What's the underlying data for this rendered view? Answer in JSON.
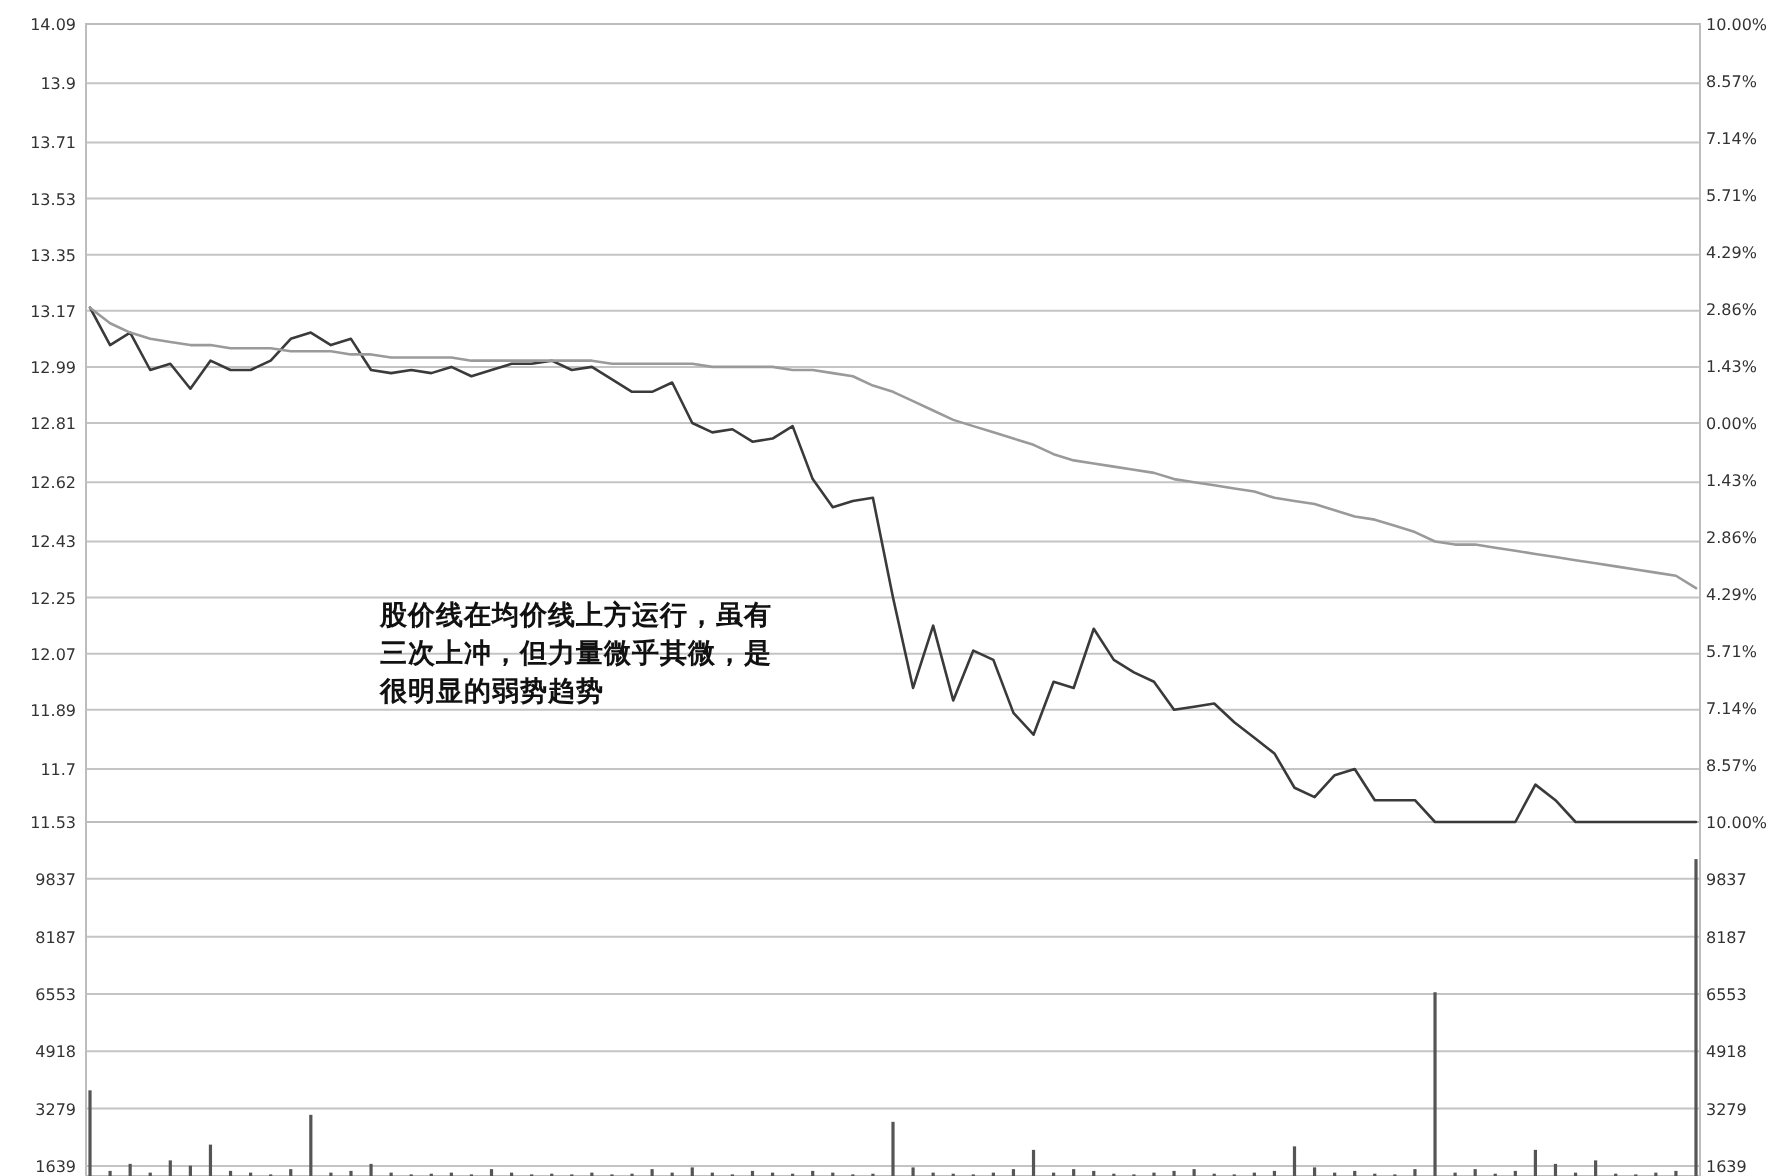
{
  "chart_data": [
    {
      "type": "line",
      "categories": [
        null,
        null,
        null,
        null,
        null,
        null,
        null,
        null,
        null,
        null,
        null,
        null,
        null,
        null,
        null,
        null,
        null,
        null,
        null,
        null,
        null,
        null,
        null,
        null,
        null,
        null,
        null,
        null,
        null,
        null,
        null,
        null,
        null,
        null,
        null,
        null,
        null,
        null,
        null,
        null,
        null,
        null,
        null,
        null,
        null,
        null,
        null,
        null,
        null,
        null,
        null,
        null,
        null,
        null,
        null,
        null,
        null,
        null,
        null,
        null,
        null,
        null,
        null,
        null,
        null,
        null,
        null,
        null,
        null,
        null,
        null,
        null,
        null,
        null,
        null,
        null,
        null,
        null,
        null,
        null,
        null
      ],
      "ylim": [
        11.53,
        14.09
      ],
      "yticks": [
        14.09,
        13.9,
        13.71,
        13.53,
        13.35,
        13.17,
        12.99,
        12.81,
        12.62,
        12.43,
        12.25,
        12.07,
        11.89,
        11.7,
        11.53
      ],
      "y2lim": [
        -10,
        10
      ],
      "y2ticks": [
        {
          "value": 10,
          "label": "10.00%"
        },
        {
          "value": 8.57,
          "label": "8.57%"
        },
        {
          "value": 7.14,
          "label": "7.14%"
        },
        {
          "value": 5.71,
          "label": "5.71%"
        },
        {
          "value": 4.29,
          "label": "4.29%"
        },
        {
          "value": 2.86,
          "label": "2.86%"
        },
        {
          "value": 1.43,
          "label": "1.43%"
        },
        {
          "value": 0,
          "label": "0.00%"
        },
        {
          "value": -1.43,
          "label": "1.43%"
        },
        {
          "value": -2.86,
          "label": "2.86%"
        },
        {
          "value": -4.29,
          "label": "4.29%"
        },
        {
          "value": -5.71,
          "label": "5.71%"
        },
        {
          "value": -7.14,
          "label": "7.14%"
        },
        {
          "value": -8.57,
          "label": "8.57%"
        },
        {
          "value": -10,
          "label": "10.00%"
        }
      ],
      "grid": "y",
      "tick_labels": "y",
      "line_style": "solid",
      "annotations": [
        "股价线在均价线上方运行，虽有三次上冲，但力量微乎其微，是很明显的弱势趋势"
      ],
      "series": [
        {
          "color": "#3a3a3a",
          "values": [
            13.18,
            13.06,
            13.1,
            12.98,
            13.0,
            12.92,
            13.01,
            12.98,
            12.98,
            13.01,
            13.08,
            13.1,
            13.06,
            13.08,
            12.98,
            12.97,
            12.98,
            12.97,
            12.99,
            12.96,
            12.98,
            13.0,
            13.0,
            13.01,
            12.98,
            12.99,
            12.95,
            12.91,
            12.91,
            12.94,
            12.81,
            12.78,
            12.79,
            12.75,
            12.76,
            12.8,
            12.63,
            12.54,
            12.56,
            12.57,
            12.25,
            11.96,
            12.16,
            11.92,
            12.08,
            12.05,
            11.88,
            11.81,
            11.98,
            11.96,
            12.15,
            12.05,
            12.01,
            11.98,
            11.89,
            11.9,
            11.91,
            11.85,
            11.8,
            11.75,
            11.64,
            11.61,
            11.68,
            11.7,
            11.6,
            11.6,
            11.6,
            11.53,
            11.53,
            11.53,
            11.53,
            11.53,
            11.65,
            11.6,
            11.53,
            11.53,
            11.53,
            11.53,
            11.53,
            11.53,
            11.53
          ]
        },
        {
          "color": "#9a9a9a",
          "values": [
            13.18,
            13.13,
            13.1,
            13.08,
            13.07,
            13.06,
            13.06,
            13.05,
            13.05,
            13.05,
            13.04,
            13.04,
            13.04,
            13.03,
            13.03,
            13.02,
            13.02,
            13.02,
            13.02,
            13.01,
            13.01,
            13.01,
            13.01,
            13.01,
            13.01,
            13.01,
            13.0,
            13.0,
            13.0,
            13.0,
            13.0,
            12.99,
            12.99,
            12.99,
            12.99,
            12.98,
            12.98,
            12.97,
            12.96,
            12.93,
            12.91,
            12.88,
            12.85,
            12.82,
            12.8,
            12.78,
            12.76,
            12.74,
            12.71,
            12.69,
            12.68,
            12.67,
            12.66,
            12.65,
            12.63,
            12.62,
            12.61,
            12.6,
            12.59,
            12.57,
            12.56,
            12.55,
            12.53,
            12.51,
            12.5,
            12.48,
            12.46,
            12.43,
            12.42,
            12.42,
            12.41,
            12.4,
            12.39,
            12.38,
            12.37,
            12.36,
            12.35,
            12.34,
            12.33,
            12.32,
            12.28
          ]
        }
      ]
    },
    {
      "type": "bar",
      "categories": [
        null,
        null,
        null,
        null,
        null,
        null,
        null,
        null,
        null,
        null,
        null,
        null,
        null,
        null,
        null,
        null,
        null,
        null,
        null,
        null,
        null,
        null,
        null,
        null,
        null,
        null,
        null,
        null,
        null,
        null,
        null,
        null,
        null,
        null,
        null,
        null,
        null,
        null,
        null,
        null,
        null,
        null,
        null,
        null,
        null,
        null,
        null,
        null,
        null,
        null,
        null,
        null,
        null,
        null,
        null,
        null,
        null,
        null,
        null,
        null,
        null,
        null,
        null,
        null,
        null,
        null,
        null,
        null,
        null,
        null,
        null,
        null,
        null,
        null,
        null,
        null,
        null,
        null,
        null,
        null,
        null
      ],
      "ylim": [
        1354,
        11460
      ],
      "yticks": [
        9837,
        8187,
        6553,
        4918,
        3279,
        1639
      ],
      "y2lim": [
        1354,
        11460
      ],
      "y2ticks": [
        9837,
        8187,
        6553,
        4918,
        3279,
        1639
      ],
      "grid": "y",
      "tick_labels": "y",
      "series": [
        {
          "color": "#555555",
          "values": [
            3800,
            1500,
            1700,
            1450,
            1800,
            1650,
            2250,
            1500,
            1450,
            1400,
            1550,
            3100,
            1450,
            1500,
            1700,
            1450,
            1400,
            1420,
            1450,
            1400,
            1550,
            1450,
            1400,
            1420,
            1400,
            1450,
            1400,
            1420,
            1550,
            1450,
            1600,
            1450,
            1400,
            1500,
            1450,
            1420,
            1500,
            1450,
            1400,
            1420,
            2900,
            1600,
            1450,
            1420,
            1400,
            1450,
            1550,
            2100,
            1450,
            1550,
            1500,
            1420,
            1400,
            1450,
            1500,
            1550,
            1420,
            1400,
            1450,
            1500,
            2200,
            1600,
            1450,
            1500,
            1420,
            1400,
            1550,
            6600,
            1450,
            1550,
            1420,
            1500,
            2100,
            1700,
            1450,
            1800,
            1420,
            1400,
            1450,
            1500,
            10400
          ]
        }
      ]
    }
  ]
}
